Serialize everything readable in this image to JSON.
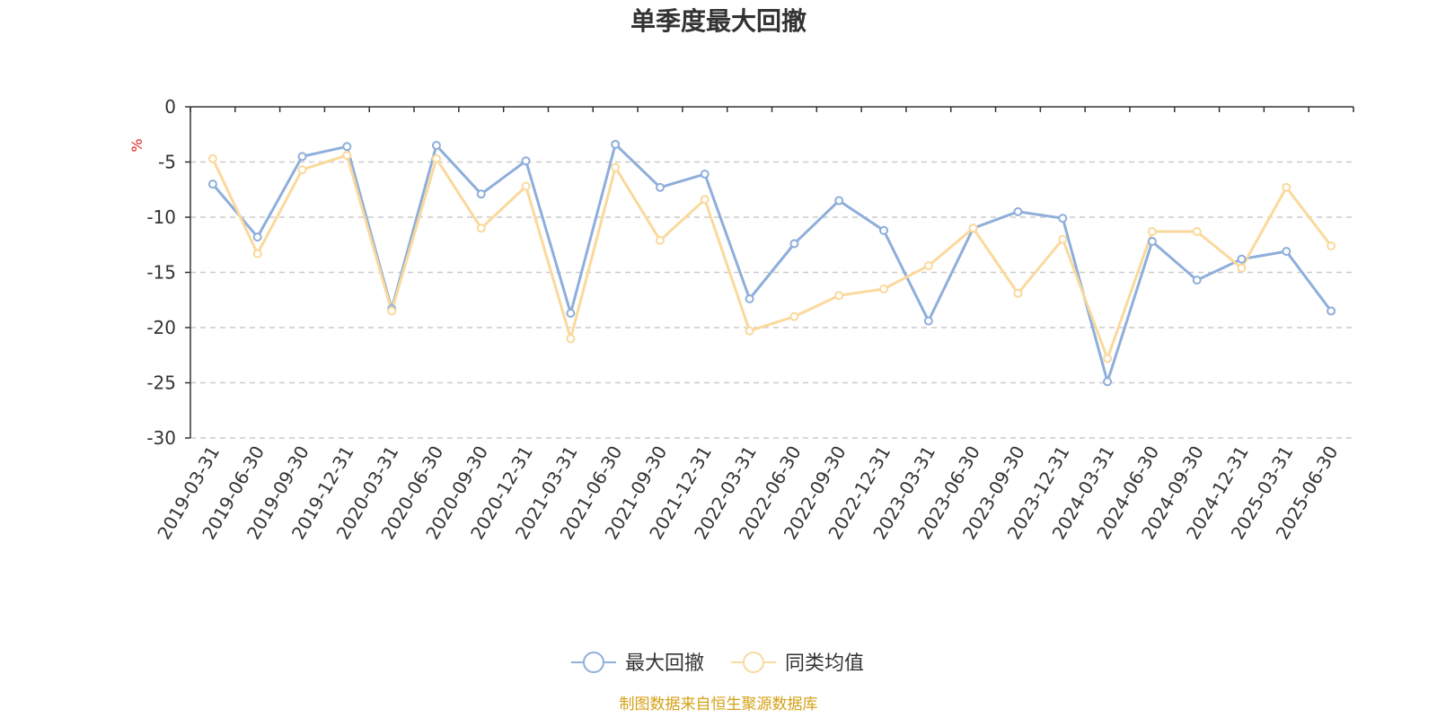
{
  "chart_data": {
    "type": "line",
    "title": "单季度最大回撤",
    "ylabel": "%",
    "ylim": [
      -30,
      0
    ],
    "yticks": [
      0,
      -5,
      -10,
      -15,
      -20,
      -25,
      -30
    ],
    "grid": true,
    "legend_position": "bottom-center",
    "categories": [
      "2019-03-31",
      "2019-06-30",
      "2019-09-30",
      "2019-12-31",
      "2020-03-31",
      "2020-06-30",
      "2020-09-30",
      "2020-12-31",
      "2021-03-31",
      "2021-06-30",
      "2021-09-30",
      "2021-12-31",
      "2022-03-31",
      "2022-06-30",
      "2022-09-30",
      "2022-12-31",
      "2023-03-31",
      "2023-06-30",
      "2023-09-30",
      "2023-12-31",
      "2024-03-31",
      "2024-06-30",
      "2024-09-30",
      "2024-12-31",
      "2025-03-31",
      "2025-06-30"
    ],
    "series": [
      {
        "name": "最大回撤",
        "color": "#8eaedb",
        "values": [
          -7.0,
          -11.8,
          -4.5,
          -3.6,
          -18.3,
          -3.5,
          -7.9,
          -4.9,
          -18.7,
          -3.4,
          -7.3,
          -6.1,
          -17.4,
          -12.4,
          -8.5,
          -11.2,
          -19.4,
          -11.0,
          -9.5,
          -10.1,
          -24.9,
          -12.2,
          -15.7,
          -13.8,
          -13.1,
          -18.5
        ]
      },
      {
        "name": "同类均值",
        "color": "#fad99c",
        "values": [
          -4.7,
          -13.3,
          -5.7,
          -4.4,
          -18.5,
          -4.7,
          -11.0,
          -7.2,
          -21.0,
          -5.5,
          -12.1,
          -8.4,
          -20.3,
          -19.0,
          -17.1,
          -16.5,
          -14.4,
          -11.0,
          -16.9,
          -12.0,
          -22.8,
          -11.3,
          -11.3,
          -14.6,
          -7.3,
          -12.6
        ]
      }
    ],
    "source": "制图数据来自恒生聚源数据库",
    "source_color": "#d4a017",
    "unit_color": "#e02020"
  }
}
